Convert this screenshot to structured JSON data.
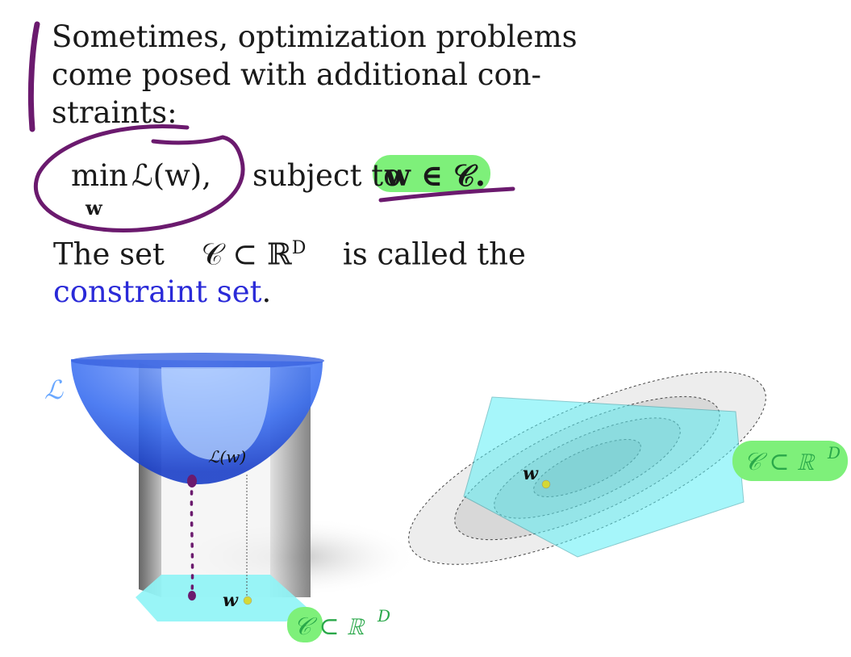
{
  "text": {
    "p1_line1": "Sometimes, optimization problems",
    "p1_line2": "come posed with additional con-",
    "p1_line3": "straints:",
    "eq_min": "min",
    "eq_min_sub": "w",
    "eq_loss": "ℒ(w),",
    "eq_subject": "subject to",
    "eq_constraint": "w ∈ 𝒞.",
    "p2_line1_a": "The set",
    "p2_line1_b": "𝒞 ⊂ ℝ",
    "p2_line1_sup": "D",
    "p2_line1_c": "is called the",
    "p2_line2_link": "constraint set",
    "p2_line2_end": "."
  },
  "figure": {
    "loss_label": "ℒ",
    "loss_value_label": "ℒ(w)",
    "w_label_left": "w",
    "w_label_right": "w",
    "constraint_label_left": "𝒞 ⊂ ℝ",
    "constraint_label_right": "𝒞 ⊂ ℝ",
    "superscript": "D"
  },
  "colors": {
    "annotation_purple": "#6b1a6e",
    "highlight_green": "#7ef07a",
    "bowl_blue": "#2f63e6",
    "constraint_cyan": "#8ef4f6",
    "link_blue": "#2a2ad8",
    "point_yellow": "#d4d836"
  }
}
